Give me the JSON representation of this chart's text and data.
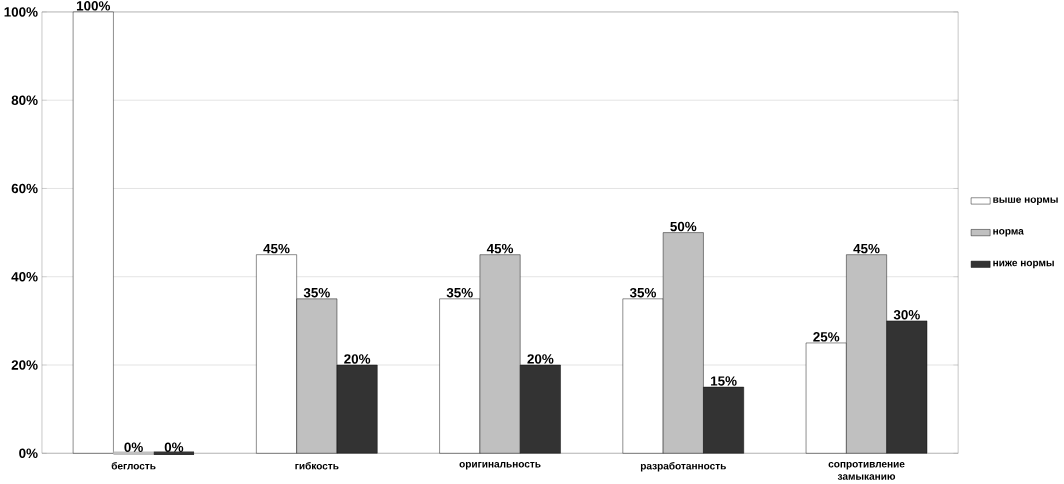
{
  "chart_data": {
    "type": "bar",
    "categories": [
      "беглость",
      "гибкость",
      "оригинальность",
      "разработанность",
      "сопротивление замыканию"
    ],
    "series": [
      {
        "name": "выше нормы",
        "color": "#ffffff",
        "values": [
          100,
          45,
          35,
          35,
          25
        ],
        "value_labels": [
          "100%",
          "45%",
          "35%",
          "35%",
          "25%"
        ]
      },
      {
        "name": "норма",
        "color": "#c0c0c0",
        "values": [
          0,
          35,
          45,
          50,
          45
        ],
        "value_labels": [
          "0%",
          "35%",
          "45%",
          "50%",
          "45%"
        ]
      },
      {
        "name": "ниже нормы",
        "color": "#333333",
        "values": [
          0,
          20,
          20,
          15,
          30
        ],
        "value_labels": [
          "0%",
          "20%",
          "20%",
          "15%",
          "30%"
        ]
      }
    ],
    "ylim": [
      0,
      100
    ],
    "yticks": [
      {
        "value": 0,
        "label": "0%"
      },
      {
        "value": 20,
        "label": "20%"
      },
      {
        "value": 40,
        "label": "40%"
      },
      {
        "value": 60,
        "label": "60%"
      },
      {
        "value": 80,
        "label": "80%"
      },
      {
        "value": 100,
        "label": "100%"
      }
    ],
    "grid": "y",
    "legend": "right"
  }
}
